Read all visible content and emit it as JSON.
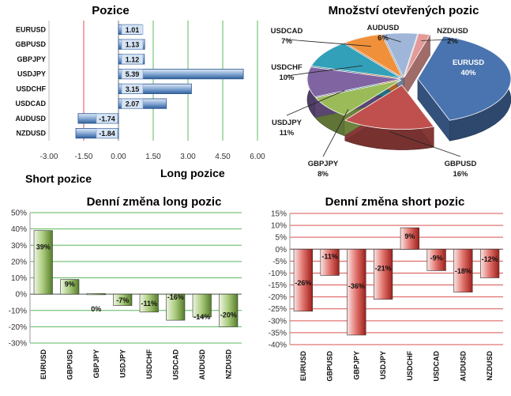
{
  "chart_data": [
    {
      "id": "positions",
      "type": "bar",
      "orientation": "horizontal",
      "title": "Pozice",
      "annotations": [
        "Short pozice",
        "Long pozice"
      ],
      "categories": [
        "EURUSD",
        "GBPUSD",
        "GBPJPY",
        "USDJPY",
        "USDCHF",
        "USDCAD",
        "AUDUSD",
        "NZDUSD"
      ],
      "values": [
        1.01,
        1.13,
        1.12,
        5.39,
        3.15,
        2.07,
        -1.74,
        -1.84
      ],
      "value_labels": [
        "1.01",
        "1.13",
        "1.12",
        "5.39",
        "3.15",
        "2.07",
        "-1.74",
        "-1.84"
      ],
      "xlim": [
        -3.0,
        6.0
      ],
      "xticks": [
        "-3.00",
        "-1.50",
        "0.00",
        "1.50",
        "3.00",
        "4.50",
        "6.00"
      ],
      "colors": {
        "bar": "#4f7fb8",
        "bar_light": "#d6e4f5",
        "grid_neg": "#d9534f",
        "grid_pos": "#5cb85c"
      }
    },
    {
      "id": "open-positions",
      "type": "pie",
      "title": "Množství otevřených pozic",
      "slices": [
        {
          "label": "EURUSD",
          "pct": "40%",
          "value": 40,
          "color": "#4a74b0"
        },
        {
          "label": "GBPUSD",
          "pct": "16%",
          "value": 16,
          "color": "#c0504d"
        },
        {
          "label": "GBPJPY",
          "pct": "8%",
          "value": 8,
          "color": "#9bbb59"
        },
        {
          "label": "USDJPY",
          "pct": "11%",
          "value": 11,
          "color": "#8064a2"
        },
        {
          "label": "USDCHF",
          "pct": "10%",
          "value": 10,
          "color": "#31a0b8"
        },
        {
          "label": "USDCAD",
          "pct": "7%",
          "value": 7,
          "color": "#f0903a"
        },
        {
          "label": "AUDUSD",
          "pct": "6%",
          "value": 6,
          "color": "#9fb6d8"
        },
        {
          "label": "NZDUSD",
          "pct": "2%",
          "value": 2,
          "color": "#e39a98"
        }
      ]
    },
    {
      "id": "daily-long",
      "type": "bar",
      "title": "Denní změna long pozic",
      "categories": [
        "EURUSD",
        "GBPUSD",
        "GBPJPY",
        "USDJPY",
        "USDCHF",
        "USDCAD",
        "AUDUSD",
        "NZDUSD"
      ],
      "values": [
        39,
        9,
        0,
        -7,
        -11,
        -16,
        -14,
        -20
      ],
      "value_labels": [
        "39%",
        "9%",
        "0%",
        "-7%",
        "-11%",
        "-16%",
        "-14%",
        "-20%"
      ],
      "ylim": [
        -30,
        50
      ],
      "yticks": [
        "-30%",
        "-20%",
        "-10%",
        "0%",
        "10%",
        "20%",
        "30%",
        "40%",
        "50%"
      ],
      "colors": {
        "bar": "#6e9a3a",
        "bar_light": "#d7e8bf",
        "grid": "#5cb85c"
      }
    },
    {
      "id": "daily-short",
      "type": "bar",
      "title": "Denní změna short pozic",
      "categories": [
        "EURUSD",
        "GBPUSD",
        "GBPJPY",
        "USDJPY",
        "USDCHF",
        "USDCAD",
        "AUDUSD",
        "NZDUSD"
      ],
      "values": [
        -26,
        -11,
        -36,
        -21,
        9,
        -9,
        -18,
        -12
      ],
      "value_labels": [
        "-26%",
        "-11%",
        "-36%",
        "-21%",
        "9%",
        "-9%",
        "-18%",
        "-12%"
      ],
      "ylim": [
        -40,
        15
      ],
      "yticks": [
        "-40%",
        "-35%",
        "-30%",
        "-25%",
        "-20%",
        "-15%",
        "-10%",
        "-5%",
        "0%",
        "5%",
        "10%",
        "15%"
      ],
      "colors": {
        "bar": "#c0302b",
        "bar_light": "#f2b8b5",
        "grid": "#d9534f"
      }
    }
  ]
}
